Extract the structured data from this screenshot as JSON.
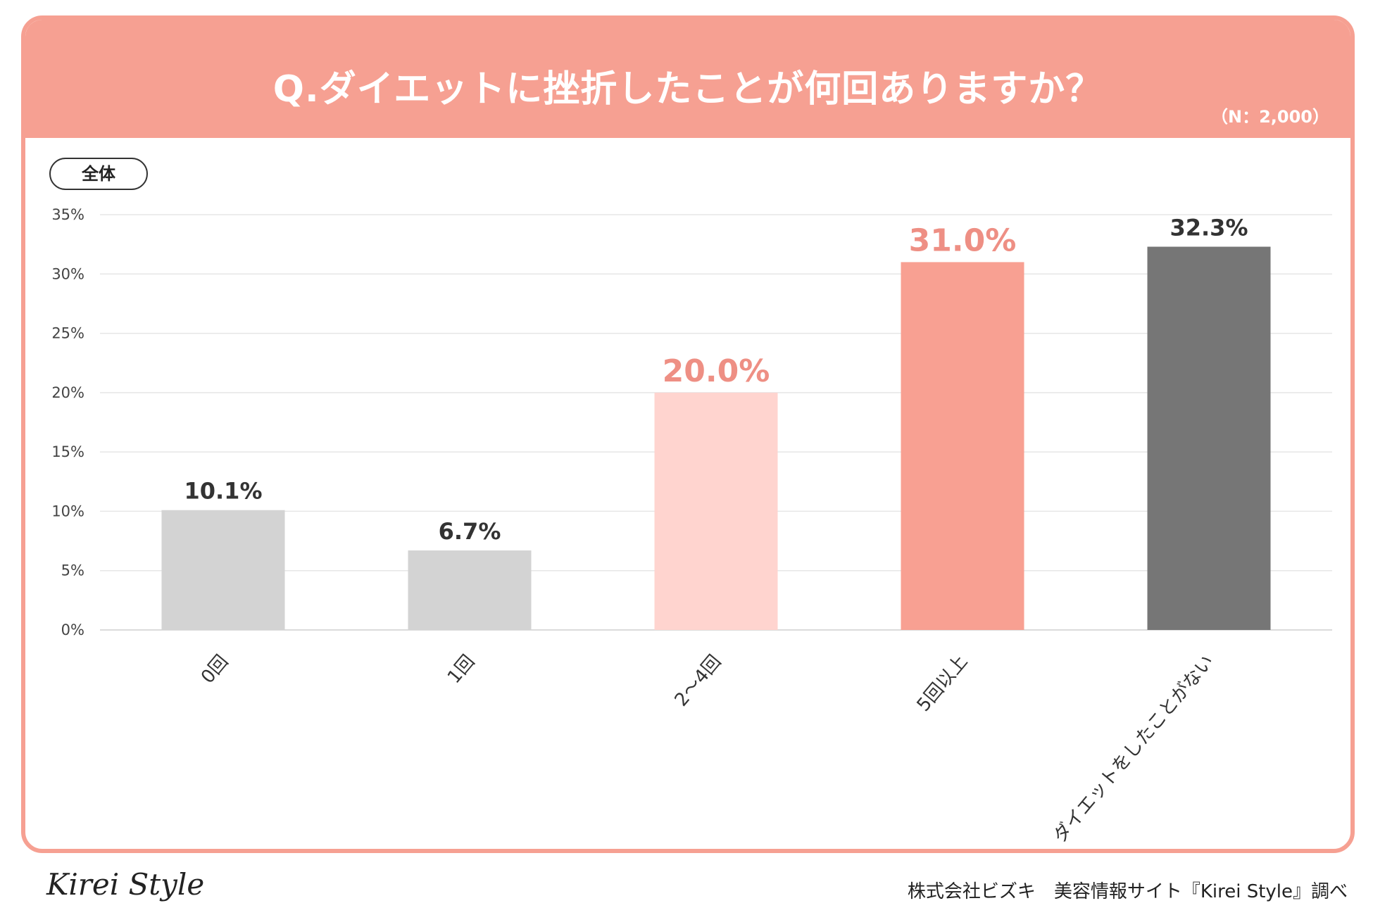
{
  "header": {
    "title": "Q.ダイエットに挫折したことが何回ありますか？",
    "sample": "（N：2,000）"
  },
  "segment": {
    "label": "全体"
  },
  "colors": {
    "header_bg": "#f6a092",
    "bar_gray": "#d3d3d3",
    "bar_light_pink": "#ffd4cf",
    "bar_salmon": "#f8a092",
    "bar_dark_gray": "#767676",
    "label_dark": "#333333",
    "label_salmon": "#ee8f84"
  },
  "chart_data": {
    "type": "bar",
    "title": "Q.ダイエットに挫折したことが何回ありますか？",
    "xlabel": "",
    "ylabel": "",
    "ylim": [
      0,
      35
    ],
    "yticks": [
      "0%",
      "5%",
      "10%",
      "15%",
      "20%",
      "25%",
      "30%",
      "35%"
    ],
    "grid": true,
    "categories": [
      "0回",
      "1回",
      "2～4回",
      "5回以上",
      "ダイエットをしたことがない"
    ],
    "values": [
      10.1,
      6.7,
      20.0,
      31.0,
      32.3
    ],
    "value_labels": [
      "10.1%",
      "6.7%",
      "20.0%",
      "31.0%",
      "32.3%"
    ],
    "bar_colors": [
      "#d3d3d3",
      "#d3d3d3",
      "#ffd4cf",
      "#f8a092",
      "#767676"
    ],
    "label_colors": [
      "#333333",
      "#333333",
      "#ee8f84",
      "#ee8f84",
      "#333333"
    ]
  },
  "footer": {
    "brand": "Kirei Style",
    "credit": "株式会社ビズキ　美容情報サイト『Kirei Style』調べ"
  }
}
